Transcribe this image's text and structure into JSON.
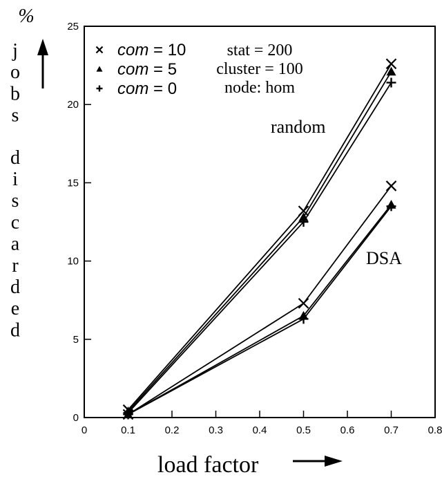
{
  "chart_data": {
    "type": "line",
    "xlabel": "load factor",
    "ylabel_unit": "%",
    "ylabel": "jobs discarded",
    "xlim": [
      0,
      0.8
    ],
    "ylim": [
      0,
      25
    ],
    "x_ticks": [
      "0",
      "0.1",
      "0.2",
      "0.3",
      "0.4",
      "0.5",
      "0.6",
      "0.7",
      "0.8"
    ],
    "y_ticks": [
      "0",
      "5",
      "10",
      "15",
      "20",
      "25"
    ],
    "grid": false,
    "legend_position": "top-left",
    "legend": [
      {
        "marker": "x",
        "label_italic": "com",
        "label_rest": " = 10"
      },
      {
        "marker": "triangle",
        "label_italic": "com",
        "label_rest": " = 5"
      },
      {
        "marker": "plus",
        "label_italic": "com",
        "label_rest": " = 0"
      }
    ],
    "params": [
      "stat = 200",
      "cluster = 100",
      "node: hom"
    ],
    "annotations": [
      "random",
      "DSA"
    ],
    "series": [
      {
        "group": "random",
        "marker": "x",
        "x": [
          0.1,
          0.5,
          0.7
        ],
        "y": [
          0.5,
          13.2,
          22.6
        ]
      },
      {
        "group": "random",
        "marker": "triangle",
        "x": [
          0.1,
          0.5,
          0.7
        ],
        "y": [
          0.4,
          12.8,
          22.1
        ]
      },
      {
        "group": "random",
        "marker": "plus",
        "x": [
          0.1,
          0.5,
          0.7
        ],
        "y": [
          0.3,
          12.5,
          21.4
        ]
      },
      {
        "group": "DSA",
        "marker": "x",
        "x": [
          0.1,
          0.5,
          0.7
        ],
        "y": [
          0.2,
          7.3,
          14.8
        ]
      },
      {
        "group": "DSA",
        "marker": "triangle",
        "x": [
          0.1,
          0.5,
          0.7
        ],
        "y": [
          0.2,
          6.5,
          13.6
        ]
      },
      {
        "group": "DSA",
        "marker": "plus",
        "x": [
          0.1,
          0.5,
          0.7
        ],
        "y": [
          0.2,
          6.3,
          13.5
        ]
      }
    ]
  }
}
